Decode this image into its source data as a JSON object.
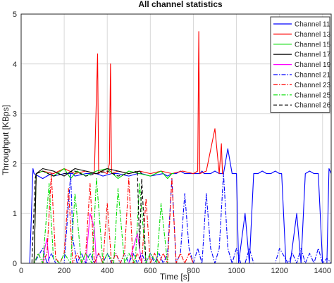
{
  "chart_data": {
    "type": "line",
    "title": "All channel statistics",
    "xlabel": "Time [s]",
    "ylabel": "Throughput [KBps]",
    "xlim": [
      0,
      1440
    ],
    "ylim": [
      0,
      5
    ],
    "xticks": [
      0,
      200,
      400,
      600,
      800,
      1000,
      1200,
      1400
    ],
    "yticks": [
      0,
      1,
      2,
      3,
      4,
      5
    ],
    "xtick_labels": [
      "0",
      "200",
      "400",
      "600",
      "800",
      "1000",
      "1200",
      "1400"
    ],
    "ytick_labels": [
      "0",
      "1",
      "2",
      "3",
      "4",
      "5"
    ],
    "grid": true,
    "legend_position": "top-right",
    "series": [
      {
        "name": "Channel 11",
        "color": "#0000ff",
        "dash": "solid",
        "x": [
          0,
          40,
          55,
          60,
          100,
          140,
          150,
          200,
          240,
          250,
          300,
          350,
          380,
          420,
          450,
          500,
          540,
          560,
          600,
          660,
          680,
          700,
          720,
          740,
          760,
          800,
          830,
          840,
          850,
          860,
          880,
          900,
          920,
          940,
          960,
          980,
          1000,
          1010,
          1040,
          1060,
          1080,
          1100,
          1120,
          1140,
          1160,
          1180,
          1200,
          1210,
          1230,
          1250,
          1280,
          1300,
          1320,
          1340,
          1360,
          1380,
          1400,
          1420,
          1430,
          1440
        ],
        "y": [
          0,
          0,
          1.9,
          1.8,
          1.7,
          1.8,
          1.75,
          1.8,
          1.8,
          1.75,
          1.8,
          1.8,
          1.75,
          1.8,
          1.8,
          1.75,
          1.8,
          1.8,
          1.75,
          1.8,
          1.75,
          1.8,
          1.8,
          1.85,
          1.8,
          1.8,
          1.8,
          1.85,
          1.8,
          1.8,
          1.8,
          1.85,
          1.8,
          1.8,
          2.3,
          1.8,
          1.8,
          0,
          1.0,
          0,
          1.8,
          1.8,
          1.85,
          1.8,
          1.8,
          1.85,
          1.8,
          1.8,
          0,
          0,
          1.0,
          0,
          1.8,
          1.85,
          1.8,
          1.8,
          0,
          0,
          1.9,
          1.8
        ]
      },
      {
        "name": "Channel 13",
        "color": "#ff0000",
        "dash": "solid",
        "x": [
          0,
          60,
          70,
          100,
          150,
          200,
          250,
          300,
          340,
          355,
          360,
          370,
          400,
          410,
          415,
          420,
          450,
          500,
          550,
          600,
          650,
          700,
          750,
          800,
          820,
          825,
          830,
          860,
          900,
          920,
          930,
          935,
          940
        ],
        "y": [
          0,
          0,
          1.8,
          1.85,
          1.8,
          1.9,
          1.8,
          1.85,
          1.8,
          4.2,
          1.8,
          1.85,
          1.8,
          2.0,
          4.0,
          1.8,
          1.85,
          1.8,
          1.85,
          1.8,
          1.85,
          1.8,
          1.85,
          1.8,
          1.85,
          4.65,
          1.8,
          1.85,
          2.7,
          1.8,
          2.4,
          1.8,
          1.8
        ]
      },
      {
        "name": "Channel 15",
        "color": "#00dd00",
        "dash": "solid",
        "x": [
          0,
          60,
          70,
          100,
          150,
          200,
          230,
          260,
          300,
          350,
          400,
          450,
          500,
          550,
          600,
          650,
          680,
          700,
          710
        ],
        "y": [
          0,
          0,
          1.8,
          1.85,
          1.75,
          1.9,
          1.7,
          1.85,
          1.75,
          1.85,
          1.9,
          1.7,
          1.85,
          1.8,
          1.75,
          1.85,
          1.7,
          1.8,
          1.8
        ]
      },
      {
        "name": "Channel 17",
        "color": "#000000",
        "dash": "solid",
        "x": [
          0,
          60,
          70,
          100,
          150,
          200,
          250,
          300,
          350,
          400,
          450,
          500,
          550,
          560
        ],
        "y": [
          0,
          0,
          1.8,
          1.9,
          1.85,
          1.75,
          1.9,
          1.85,
          1.8,
          1.9,
          1.85,
          1.8,
          1.85,
          1.8
        ]
      },
      {
        "name": "Channel 19",
        "color": "#ff00ff",
        "dash": "solid",
        "x": [
          0,
          100,
          110,
          120,
          130,
          150,
          300,
          320,
          340,
          350,
          380,
          400,
          500,
          540,
          560,
          580
        ],
        "y": [
          0,
          0,
          0.3,
          0.5,
          0,
          0,
          0,
          1.0,
          0.7,
          0,
          0,
          0,
          0,
          0.6,
          0,
          0
        ]
      },
      {
        "name": "Channel 21",
        "color": "#0000ff",
        "dash": "dashdot",
        "x": [
          0,
          60,
          100,
          120,
          140,
          160,
          200,
          230,
          240,
          260,
          280,
          300,
          320,
          340,
          360,
          380,
          400,
          420,
          440,
          460,
          480,
          500,
          520,
          540,
          560,
          580,
          600,
          620,
          640,
          660,
          680,
          700,
          720,
          740,
          760,
          780,
          800,
          820,
          840,
          860,
          880,
          900,
          920,
          940,
          960,
          980,
          1000,
          1020,
          1040,
          1060,
          1080,
          1100,
          1120,
          1140,
          1160,
          1180,
          1200,
          1240,
          1260,
          1280,
          1300,
          1320,
          1340,
          1360,
          1380,
          1400,
          1420,
          1440
        ],
        "y": [
          0,
          0,
          0.3,
          0,
          0.2,
          0,
          0,
          1.8,
          0.5,
          0,
          0.2,
          0,
          0.2,
          0,
          0.2,
          0,
          0.2,
          0,
          0.2,
          0,
          0.2,
          0,
          0.2,
          0,
          0.2,
          0,
          0.2,
          0,
          0.2,
          0,
          0.2,
          1.7,
          0,
          0.2,
          1.4,
          0.3,
          0,
          0.3,
          0,
          1.4,
          0.3,
          0,
          0.3,
          1.8,
          0.3,
          0,
          0.3,
          0,
          0,
          0.3,
          0,
          0,
          0,
          0,
          0,
          0,
          0.3,
          0,
          0.2,
          0,
          0.3,
          0,
          0.2,
          0,
          0.3,
          0,
          0.1,
          0
        ]
      },
      {
        "name": "Channel 23",
        "color": "#ff0000",
        "dash": "dashdot",
        "x": [
          0,
          60,
          80,
          100,
          120,
          140,
          160,
          180,
          200,
          220,
          240,
          260,
          280,
          300,
          320,
          340,
          360,
          380,
          400,
          420,
          440,
          460,
          480,
          500,
          520,
          540,
          560,
          580,
          600,
          620,
          640,
          660,
          680,
          700,
          720,
          740,
          760,
          780,
          800
        ],
        "y": [
          0,
          0,
          0.2,
          0,
          0.2,
          1.8,
          0.1,
          0,
          0.2,
          1.5,
          0,
          0.2,
          0,
          0.2,
          1.6,
          0,
          0.2,
          0,
          1.2,
          0,
          0.2,
          0,
          0.2,
          1.7,
          0,
          0.2,
          0,
          1.3,
          0,
          0.2,
          0,
          0.2,
          0,
          1.7,
          0,
          0.2,
          0,
          0.2,
          0
        ]
      },
      {
        "name": "Channel 25",
        "color": "#00dd00",
        "dash": "dashdot",
        "x": [
          0,
          60,
          80,
          100,
          130,
          150,
          180,
          200,
          230,
          250,
          280,
          300,
          330,
          350,
          380,
          400,
          430,
          450,
          480,
          500,
          530,
          550,
          580,
          600,
          630,
          650,
          680,
          700
        ],
        "y": [
          0,
          0,
          0.2,
          0,
          1.6,
          0.1,
          0,
          0.2,
          0,
          1.4,
          0,
          0.2,
          0,
          1.7,
          0,
          0.2,
          0,
          1.5,
          0,
          0.2,
          0,
          1.6,
          0,
          0.2,
          0,
          1.2,
          0,
          0
        ]
      },
      {
        "name": "Channel 26",
        "color": "#000000",
        "dash": "dashed",
        "x": [
          0,
          50,
          65,
          70,
          100,
          150,
          200,
          250,
          300,
          350,
          400,
          450,
          500,
          540,
          550,
          560,
          580,
          600
        ],
        "y": [
          0,
          0,
          1.7,
          1.8,
          1.85,
          1.75,
          1.8,
          1.85,
          1.75,
          1.8,
          1.85,
          1.75,
          1.8,
          1.85,
          0.3,
          1.7,
          0,
          0
        ]
      }
    ]
  }
}
